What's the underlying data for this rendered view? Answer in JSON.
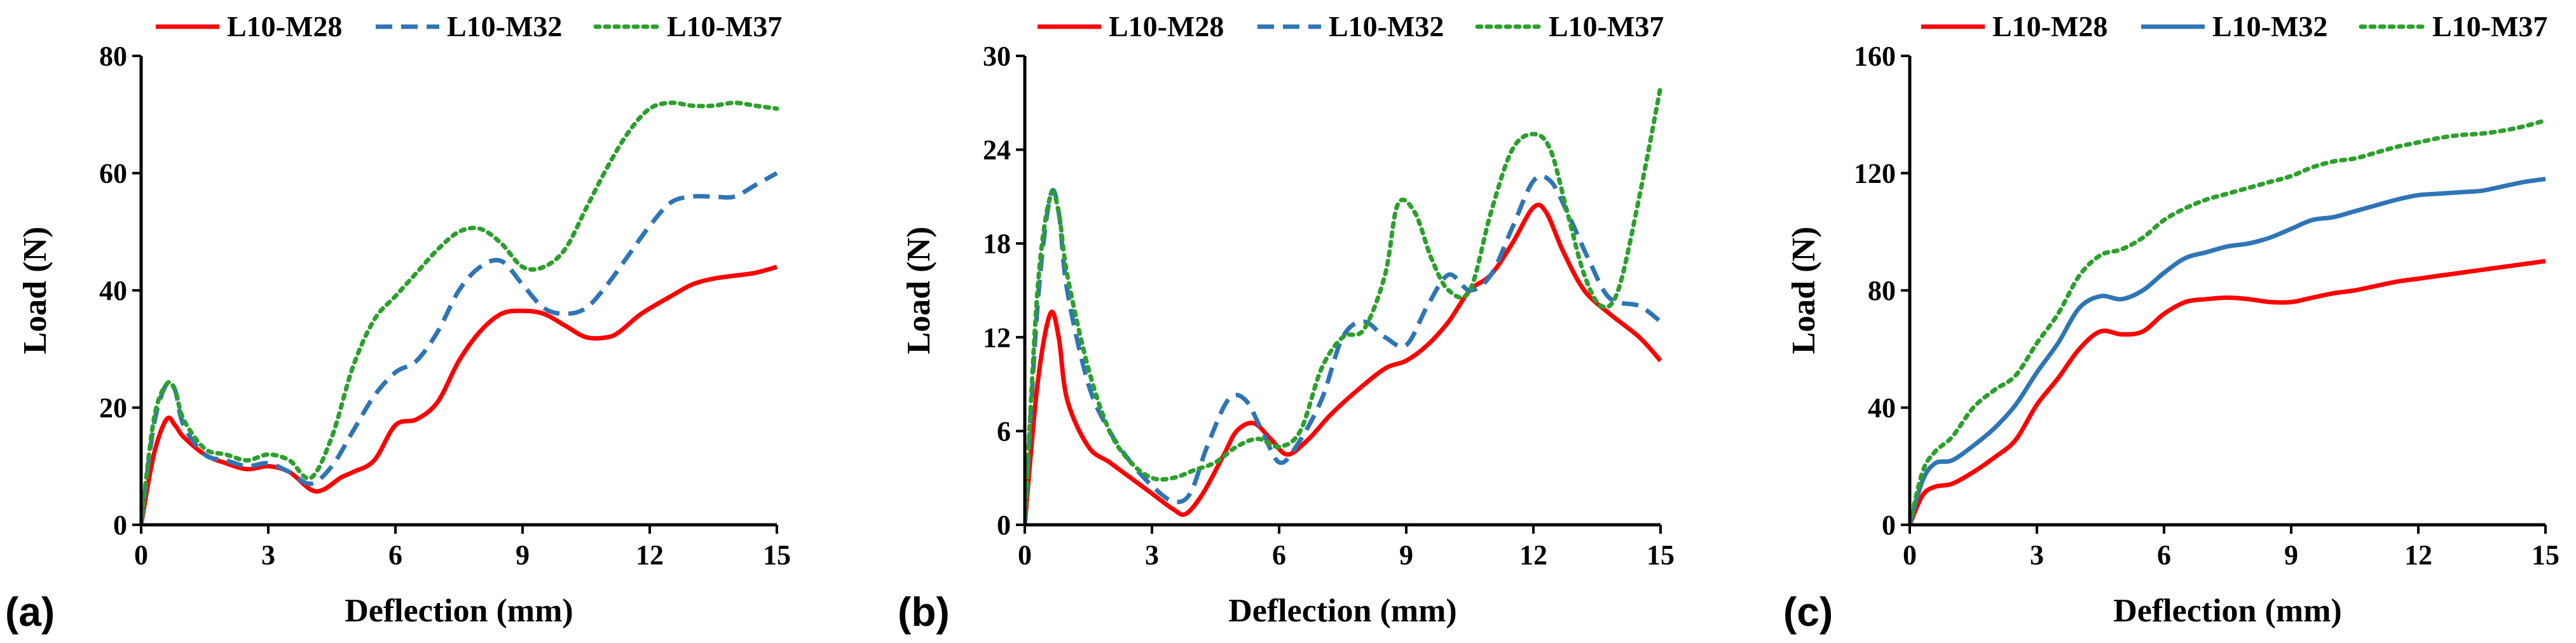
{
  "chart_data": [
    {
      "type": "line",
      "panel_label": "(a)",
      "title": "",
      "xlabel": "Deflection (mm)",
      "ylabel": "Load (N)",
      "xlim": [
        0,
        15
      ],
      "ylim": [
        0,
        80
      ],
      "xticks": [
        0,
        3,
        6,
        9,
        12,
        15
      ],
      "yticks": [
        0,
        20,
        40,
        60,
        80
      ],
      "legend": "top",
      "series": [
        {
          "name": "L10-M28",
          "color": "#ff0000",
          "dash": "solid",
          "x": [
            0,
            0.3,
            0.6,
            0.8,
            1.0,
            1.5,
            2.0,
            2.5,
            3.0,
            3.5,
            4.0,
            4.3,
            4.7,
            5.0,
            5.5,
            6.0,
            6.5,
            7.0,
            7.5,
            8.0,
            8.5,
            9.0,
            9.5,
            10.0,
            10.5,
            11.0,
            11.3,
            11.8,
            12.5,
            13.0,
            13.5,
            14.0,
            14.5,
            15.0
          ],
          "y": [
            0,
            12,
            18,
            17,
            15,
            12,
            10.5,
            9.5,
            10,
            9,
            6,
            6,
            8,
            9,
            11,
            17,
            18,
            21,
            28,
            33,
            36,
            36.5,
            36,
            34,
            32,
            32,
            33,
            36,
            39,
            41,
            42,
            42.5,
            43,
            44
          ]
        },
        {
          "name": "L10-M32",
          "color": "#2e75b6",
          "dash": "dashed",
          "x": [
            0,
            0.3,
            0.6,
            0.8,
            1.0,
            1.5,
            2.0,
            2.5,
            3.0,
            3.5,
            4.0,
            4.5,
            5.0,
            5.5,
            6.0,
            6.5,
            7.0,
            7.5,
            8.0,
            8.5,
            9.0,
            9.5,
            10.0,
            10.5,
            11.0,
            11.5,
            12.0,
            12.5,
            13.0,
            13.5,
            14.0,
            14.5,
            15.0
          ],
          "y": [
            0,
            17,
            24,
            23,
            17,
            12,
            11,
            10,
            10.5,
            9,
            7,
            10,
            16,
            22,
            26,
            28,
            33,
            40,
            44,
            45,
            41,
            37,
            36,
            37,
            41,
            46,
            51,
            55,
            56,
            56,
            56,
            58,
            60
          ]
        },
        {
          "name": "L10-M37",
          "color": "#2ca02c",
          "dash": "dotted",
          "x": [
            0,
            0.3,
            0.6,
            0.8,
            1.0,
            1.5,
            2.0,
            2.5,
            3.0,
            3.5,
            4.0,
            4.5,
            5.0,
            5.5,
            6.0,
            6.5,
            7.0,
            7.5,
            8.0,
            8.5,
            9.0,
            9.5,
            10.0,
            10.5,
            11.0,
            11.5,
            12.0,
            12.5,
            13.0,
            13.5,
            14.0,
            14.5,
            15.0
          ],
          "y": [
            0,
            18,
            24,
            23,
            18,
            13,
            12,
            11,
            12,
            11,
            8,
            15,
            27,
            35,
            39,
            43,
            47,
            50,
            50.5,
            48,
            44,
            44,
            47,
            54,
            61,
            67,
            71,
            72,
            71.5,
            71.5,
            72,
            71.5,
            71
          ]
        }
      ]
    },
    {
      "type": "line",
      "panel_label": "(b)",
      "title": "",
      "xlabel": "Deflection (mm)",
      "ylabel": "Load (N)",
      "xlim": [
        0,
        15
      ],
      "ylim": [
        0,
        30
      ],
      "xticks": [
        0,
        3,
        6,
        9,
        12,
        15
      ],
      "yticks": [
        0,
        6,
        12,
        18,
        24,
        30
      ],
      "legend": "top",
      "series": [
        {
          "name": "L10-M28",
          "color": "#ff0000",
          "dash": "solid",
          "x": [
            0,
            0.3,
            0.6,
            0.8,
            1.0,
            1.5,
            2.0,
            2.5,
            3.0,
            3.5,
            3.8,
            4.2,
            4.7,
            5.0,
            5.4,
            5.8,
            6.2,
            6.7,
            7.2,
            7.8,
            8.5,
            9.0,
            9.5,
            10.0,
            10.5,
            11.0,
            11.5,
            12.0,
            12.3,
            12.7,
            13.2,
            13.8,
            14.5,
            15.0
          ],
          "y": [
            0,
            9,
            13.5,
            12,
            8,
            5,
            4,
            3,
            2,
            1,
            0.7,
            2,
            4.5,
            6,
            6.5,
            5.5,
            4.5,
            5.5,
            7,
            8.5,
            10,
            10.5,
            11.5,
            13,
            15,
            16,
            18,
            20.3,
            20,
            17.5,
            15,
            13.5,
            12,
            10.5
          ]
        },
        {
          "name": "L10-M32",
          "color": "#2e75b6",
          "dash": "dashed",
          "x": [
            0,
            0.3,
            0.6,
            0.8,
            1.0,
            1.5,
            2.0,
            2.5,
            3.0,
            3.5,
            3.9,
            4.3,
            4.8,
            5.2,
            5.6,
            6.0,
            6.4,
            7.0,
            7.5,
            8.0,
            8.5,
            9.0,
            9.5,
            10.0,
            10.5,
            11.0,
            11.5,
            12.0,
            12.4,
            12.8,
            13.3,
            13.8,
            14.5,
            15.0
          ],
          "y": [
            0,
            14,
            21,
            20,
            15,
            9,
            6,
            4,
            2.5,
            1.5,
            2,
            5,
            8,
            8,
            6,
            4,
            5,
            8,
            12,
            13,
            12,
            11.5,
            14,
            16,
            15,
            16,
            19,
            22,
            22,
            20,
            17,
            14.5,
            14,
            13
          ]
        },
        {
          "name": "L10-M37",
          "color": "#2ca02c",
          "dash": "dotted",
          "x": [
            0,
            0.3,
            0.6,
            0.8,
            1.0,
            1.5,
            2.0,
            2.5,
            3.0,
            3.5,
            4.0,
            4.5,
            5.0,
            5.5,
            6.0,
            6.5,
            7.0,
            7.5,
            8.0,
            8.5,
            8.8,
            9.2,
            9.6,
            10.0,
            10.5,
            11.0,
            11.5,
            12.0,
            12.4,
            12.8,
            13.2,
            13.6,
            14.0,
            14.5,
            15.0
          ],
          "y": [
            0,
            15,
            21,
            20,
            16,
            10,
            6,
            4,
            3,
            3,
            3.5,
            4,
            5,
            5.5,
            5,
            6,
            10,
            12,
            12.5,
            16,
            20.5,
            20,
            17,
            15,
            15,
            20,
            24,
            25,
            24,
            20,
            16,
            14,
            15,
            21,
            28
          ]
        }
      ]
    },
    {
      "type": "line",
      "panel_label": "(c)",
      "title": "",
      "xlabel": "Deflection (mm)",
      "ylabel": "Load (N)",
      "xlim": [
        0,
        15
      ],
      "ylim": [
        0,
        160
      ],
      "xticks": [
        0,
        3,
        6,
        9,
        12,
        15
      ],
      "yticks": [
        0,
        40,
        80,
        120,
        160
      ],
      "legend": "top",
      "series": [
        {
          "name": "L10-M28",
          "color": "#ff0000",
          "dash": "solid",
          "x": [
            0,
            0.3,
            0.6,
            1.0,
            1.5,
            2.0,
            2.5,
            3.0,
            3.5,
            4.0,
            4.5,
            5.0,
            5.5,
            6.0,
            6.5,
            7.0,
            7.5,
            8.0,
            8.5,
            9.0,
            9.5,
            10.0,
            10.5,
            11.0,
            11.5,
            12.0,
            12.5,
            13.0,
            13.5,
            14.0,
            14.5,
            15.0
          ],
          "y": [
            0,
            10,
            13,
            14,
            18,
            23,
            29,
            41,
            50,
            60,
            66,
            65,
            66,
            72,
            76,
            77,
            77.5,
            77,
            76,
            76,
            77.5,
            79,
            80,
            81.5,
            83,
            84,
            85,
            86,
            87,
            88,
            89,
            90
          ]
        },
        {
          "name": "L10-M32",
          "color": "#2e75b6",
          "dash": "solid",
          "x": [
            0,
            0.3,
            0.6,
            1.0,
            1.5,
            2.0,
            2.5,
            3.0,
            3.5,
            4.0,
            4.5,
            5.0,
            5.5,
            6.0,
            6.5,
            7.0,
            7.5,
            8.0,
            8.5,
            9.0,
            9.5,
            10.0,
            10.5,
            11.0,
            11.5,
            12.0,
            12.5,
            13.0,
            13.5,
            14.0,
            14.5,
            15.0
          ],
          "y": [
            0,
            15,
            21,
            22,
            27,
            33,
            41,
            52,
            62,
            74,
            78,
            77,
            80,
            86,
            91,
            93,
            95,
            96,
            98,
            101,
            104,
            105,
            107,
            109,
            111,
            112.5,
            113,
            113.5,
            114,
            115.5,
            117,
            118
          ]
        },
        {
          "name": "L10-M37",
          "color": "#2ca02c",
          "dash": "dotted",
          "x": [
            0,
            0.3,
            0.6,
            1.0,
            1.5,
            2.0,
            2.5,
            3.0,
            3.5,
            4.0,
            4.5,
            5.0,
            5.5,
            6.0,
            6.5,
            7.0,
            7.5,
            8.0,
            8.5,
            9.0,
            9.5,
            10.0,
            10.5,
            11.0,
            11.5,
            12.0,
            12.5,
            13.0,
            13.5,
            14.0,
            14.5,
            15.0
          ],
          "y": [
            0,
            18,
            25,
            30,
            40,
            46,
            51,
            62,
            72,
            85,
            92,
            94,
            98,
            104,
            108,
            111,
            113,
            115,
            117,
            119,
            122,
            124,
            125,
            127,
            129,
            130.5,
            132,
            133,
            133.5,
            134.5,
            136,
            138
          ]
        }
      ]
    }
  ]
}
